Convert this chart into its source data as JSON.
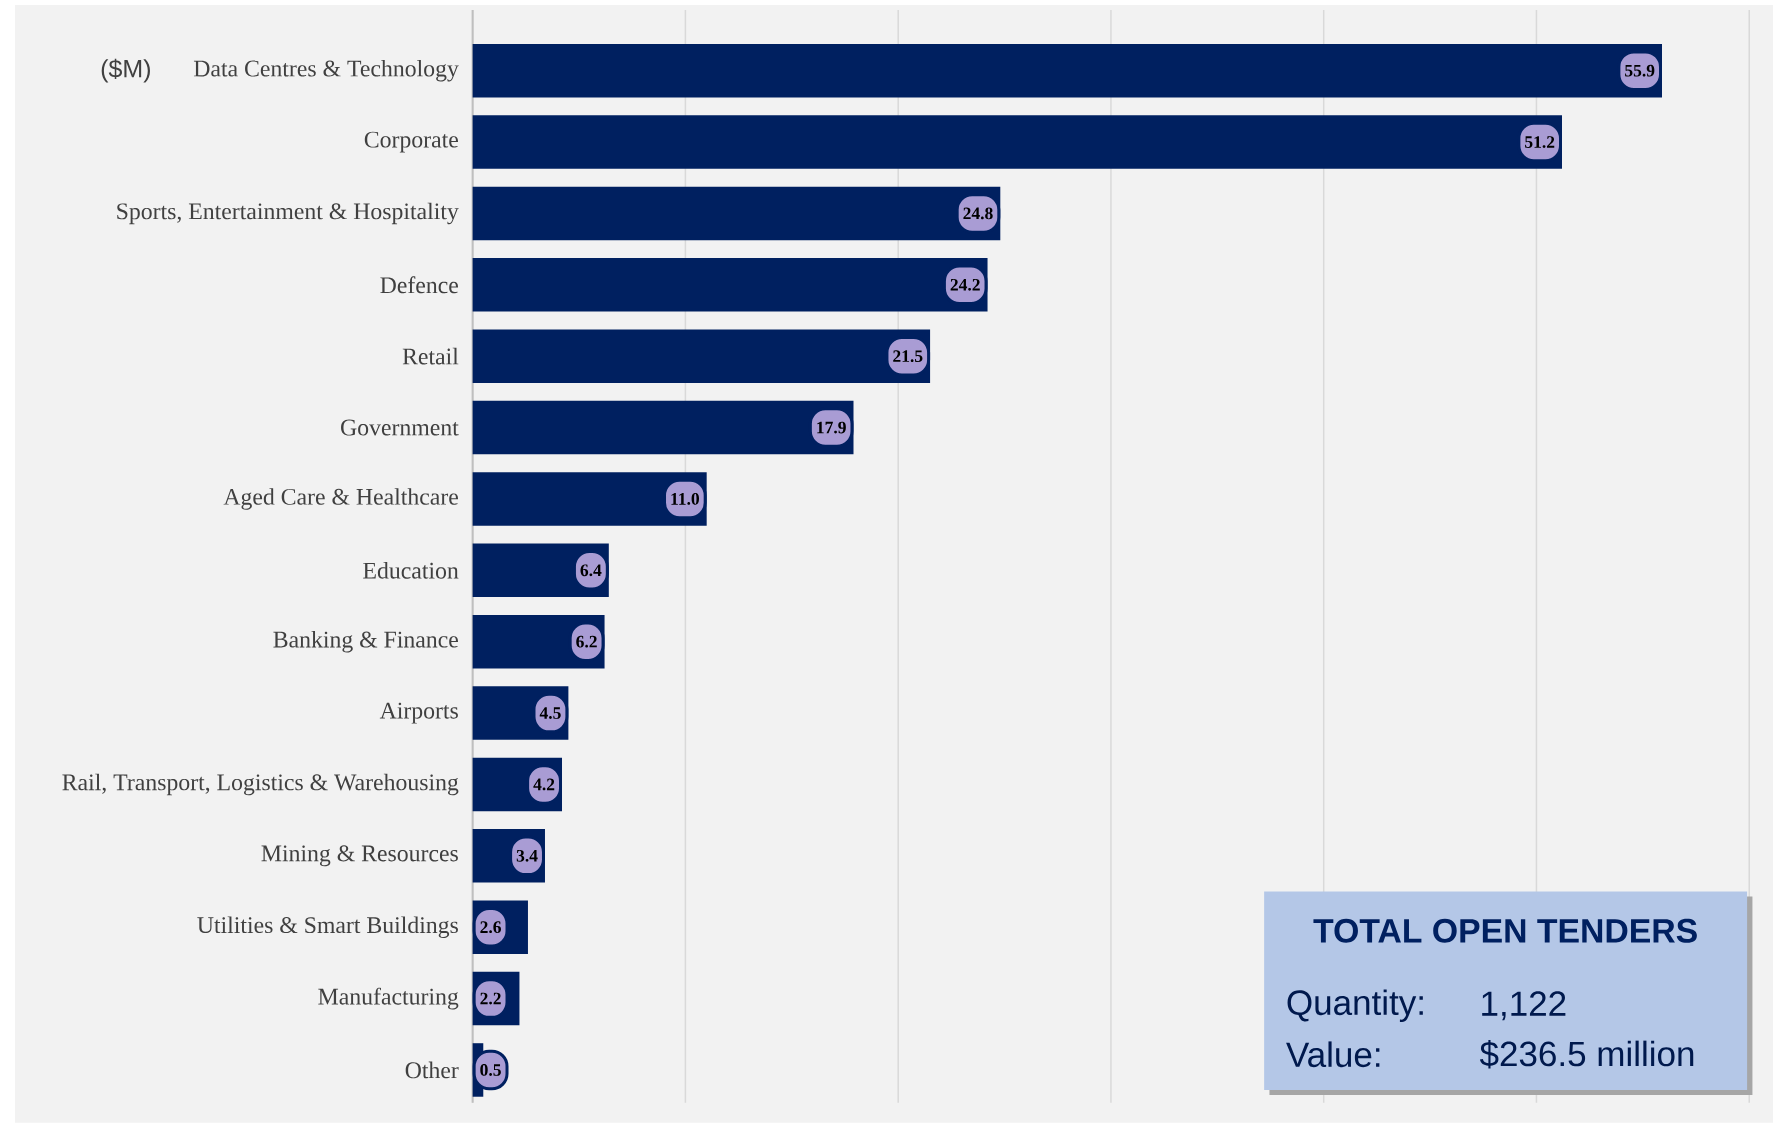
{
  "chart_data": {
    "type": "bar",
    "orientation": "horizontal",
    "categories": [
      "Data Centres & Technology",
      "Corporate",
      "Sports, Entertainment & Hospitality",
      "Defence",
      "Retail",
      "Government",
      "Aged Care & Healthcare",
      "Education",
      "Banking & Finance",
      "Airports",
      "Rail, Transport, Logistics & Warehousing",
      "Mining & Resources",
      "Utilities & Smart Buildings",
      "Manufacturing",
      "Other"
    ],
    "values": [
      55.9,
      51.2,
      24.8,
      24.2,
      21.5,
      17.9,
      11.0,
      6.4,
      6.2,
      4.5,
      4.2,
      3.4,
      2.6,
      2.2,
      0.5
    ],
    "color": "#002060",
    "xlim": [
      0,
      60
    ],
    "xticks": [
      {
        "value": 0,
        "label": null
      },
      {
        "value": 10,
        "label": null
      },
      {
        "value": 20,
        "label": null
      },
      {
        "value": 30,
        "label": null
      },
      {
        "value": 40,
        "label": null
      },
      {
        "value": 50,
        "label": null
      },
      {
        "value": 60,
        "label": null
      }
    ],
    "tick_labels": "y",
    "grid": "x",
    "value_labels": [
      "55.9",
      "51.2",
      "24.8",
      "24.2",
      "21.5",
      "17.9",
      "11.0",
      "6.4",
      "6.2",
      "4.5",
      "4.2",
      "3.4",
      "2.6",
      "2.2",
      "0.5"
    ],
    "annotations": [
      "($M)",
      "TOTAL OPEN TENDERS",
      "Quantity:",
      "1,122",
      "Value:",
      "$236.5 million"
    ]
  }
}
